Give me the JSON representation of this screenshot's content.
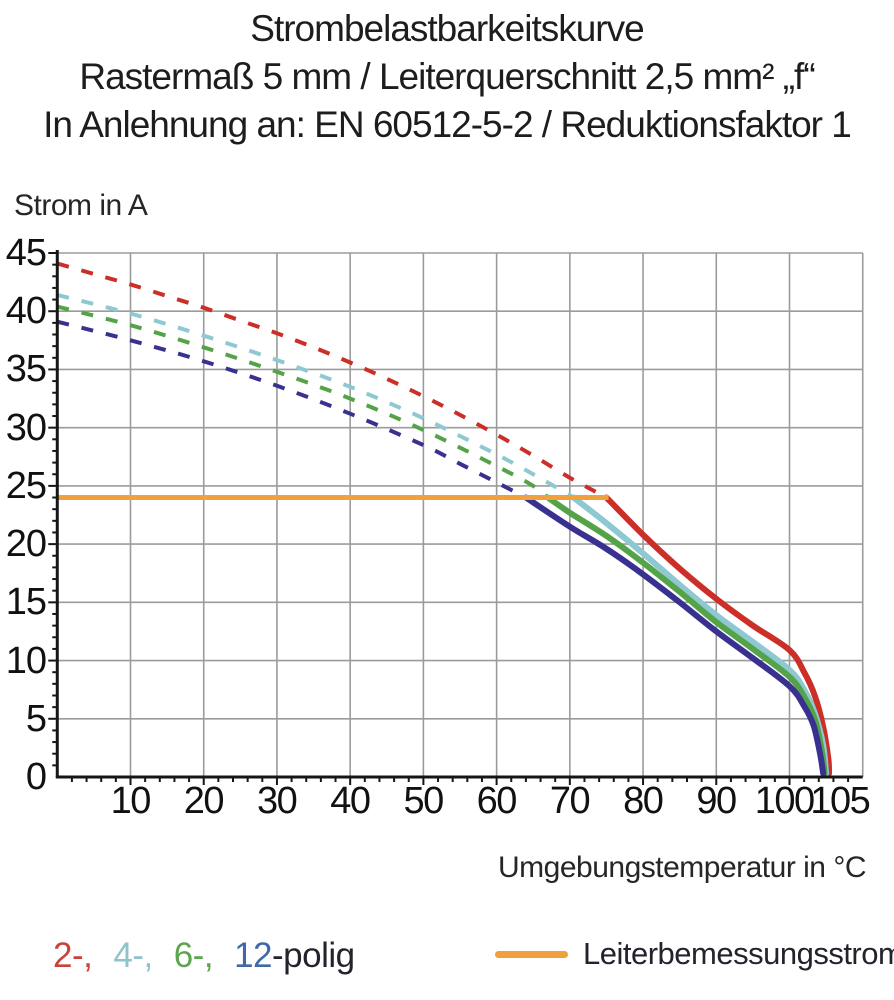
{
  "title": {
    "line1": "Strombelastbarkeitskurve",
    "line2": "Rastermaß 5 mm / Leiterquerschnitt 2,5 mm² „f“",
    "line3": "In Anlehnung an: EN 60512-5-2 / Reduktionsfaktor 1"
  },
  "axes": {
    "y_title": "Strom in A",
    "x_title": "Umgebungstemperatur in °C"
  },
  "legend": {
    "poles": [
      {
        "label": "2-,",
        "color": "#c9423b"
      },
      {
        "label": "4-,",
        "color": "#8fc3cc"
      },
      {
        "label": "6-,",
        "color": "#5ea450"
      },
      {
        "label": "12",
        "color": "#4169a8"
      }
    ],
    "poles_suffix": "-polig",
    "poles_suffix_color": "#23232e",
    "rated_label": "Leiterbemessungsstrom"
  },
  "chart_data": {
    "type": "line",
    "title": "Strombelastbarkeitskurve",
    "xlabel": "Umgebungstemperatur in °C",
    "ylabel": "Strom in A",
    "xlim": [
      0,
      110
    ],
    "ylim": [
      0,
      45
    ],
    "grid": true,
    "x_gridline_step": 10,
    "y_gridline_step": 5,
    "x_minor_tick_step": 2,
    "y_minor_tick_step": 1,
    "x_tick_labels": [
      10,
      20,
      30,
      40,
      50,
      60,
      70,
      80,
      90,
      100,
      105
    ],
    "y_tick_labels": [
      0,
      5,
      10,
      15,
      20,
      25,
      30,
      35,
      40,
      45
    ],
    "colors": {
      "grid": "#9b9b9b",
      "axis": "#161616"
    },
    "rated_current": {
      "name": "Leiterbemessungsstrom",
      "value": 24,
      "x_start": 0,
      "x_end": 75.3,
      "color": "#f0a03c"
    },
    "series": [
      {
        "name": "2-polig",
        "color": "#cb2f27",
        "dashed_above_rated": true,
        "dashed": [
          [
            0,
            44.1
          ],
          [
            5,
            43.2
          ],
          [
            10,
            42.3
          ],
          [
            15,
            41.3
          ],
          [
            20,
            40.3
          ],
          [
            25,
            39.2
          ],
          [
            30,
            38.1
          ],
          [
            35,
            36.9
          ],
          [
            40,
            35.6
          ],
          [
            45,
            34.2
          ],
          [
            50,
            32.7
          ],
          [
            55,
            31.1
          ],
          [
            60,
            29.4
          ],
          [
            65,
            27.6
          ],
          [
            70,
            25.7
          ],
          [
            75,
            24
          ]
        ],
        "solid": [
          [
            75,
            24
          ],
          [
            80,
            20.8
          ],
          [
            85,
            17.9
          ],
          [
            90,
            15.3
          ],
          [
            95,
            13.0
          ],
          [
            100,
            10.9
          ],
          [
            102,
            9.0
          ],
          [
            103.5,
            6.9
          ],
          [
            104.6,
            4.3
          ],
          [
            105.3,
            1.6
          ],
          [
            105.4,
            0.3
          ]
        ]
      },
      {
        "name": "4-polig",
        "color": "#8ec8d2",
        "dashed_above_rated": true,
        "dashed": [
          [
            0,
            41.4
          ],
          [
            10,
            39.8
          ],
          [
            20,
            37.9
          ],
          [
            30,
            35.8
          ],
          [
            40,
            33.5
          ],
          [
            50,
            30.8
          ],
          [
            60,
            27.7
          ],
          [
            65,
            26.0
          ],
          [
            70,
            24.2
          ],
          [
            70.5,
            24
          ]
        ],
        "solid": [
          [
            70.5,
            24
          ],
          [
            75,
            21.8
          ],
          [
            80,
            19.2
          ],
          [
            85,
            16.5
          ],
          [
            90,
            13.9
          ],
          [
            95,
            11.6
          ],
          [
            100,
            9.2
          ],
          [
            102,
            7.5
          ],
          [
            103.5,
            5.4
          ],
          [
            104.6,
            2.7
          ],
          [
            105,
            0.3
          ]
        ]
      },
      {
        "name": "6-polig",
        "color": "#55a348",
        "dashed_above_rated": true,
        "dashed": [
          [
            0,
            40.4
          ],
          [
            10,
            38.8
          ],
          [
            20,
            36.9
          ],
          [
            30,
            34.8
          ],
          [
            40,
            32.5
          ],
          [
            50,
            29.8
          ],
          [
            60,
            26.7
          ],
          [
            65,
            25.0
          ],
          [
            67,
            24
          ]
        ],
        "solid": [
          [
            67,
            24
          ],
          [
            70,
            22.7
          ],
          [
            75,
            20.7
          ],
          [
            80,
            18.4
          ],
          [
            85,
            15.9
          ],
          [
            90,
            13.3
          ],
          [
            95,
            11.0
          ],
          [
            100,
            8.6
          ],
          [
            102,
            6.9
          ],
          [
            103.5,
            4.9
          ],
          [
            104.4,
            2.3
          ],
          [
            104.8,
            0.3
          ]
        ]
      },
      {
        "name": "12-polig",
        "color": "#39318f",
        "dashed_above_rated": true,
        "dashed": [
          [
            0,
            39.1
          ],
          [
            10,
            37.5
          ],
          [
            20,
            35.7
          ],
          [
            30,
            33.6
          ],
          [
            40,
            31.2
          ],
          [
            50,
            28.5
          ],
          [
            55,
            26.9
          ],
          [
            60,
            25.3
          ],
          [
            64,
            24
          ]
        ],
        "solid": [
          [
            64,
            24
          ],
          [
            70,
            21.5
          ],
          [
            75,
            19.6
          ],
          [
            80,
            17.4
          ],
          [
            85,
            15.0
          ],
          [
            90,
            12.5
          ],
          [
            95,
            10.2
          ],
          [
            100,
            7.8
          ],
          [
            102,
            6.1
          ],
          [
            103.3,
            4.4
          ],
          [
            104.2,
            1.9
          ],
          [
            104.6,
            0.3
          ]
        ]
      }
    ]
  }
}
